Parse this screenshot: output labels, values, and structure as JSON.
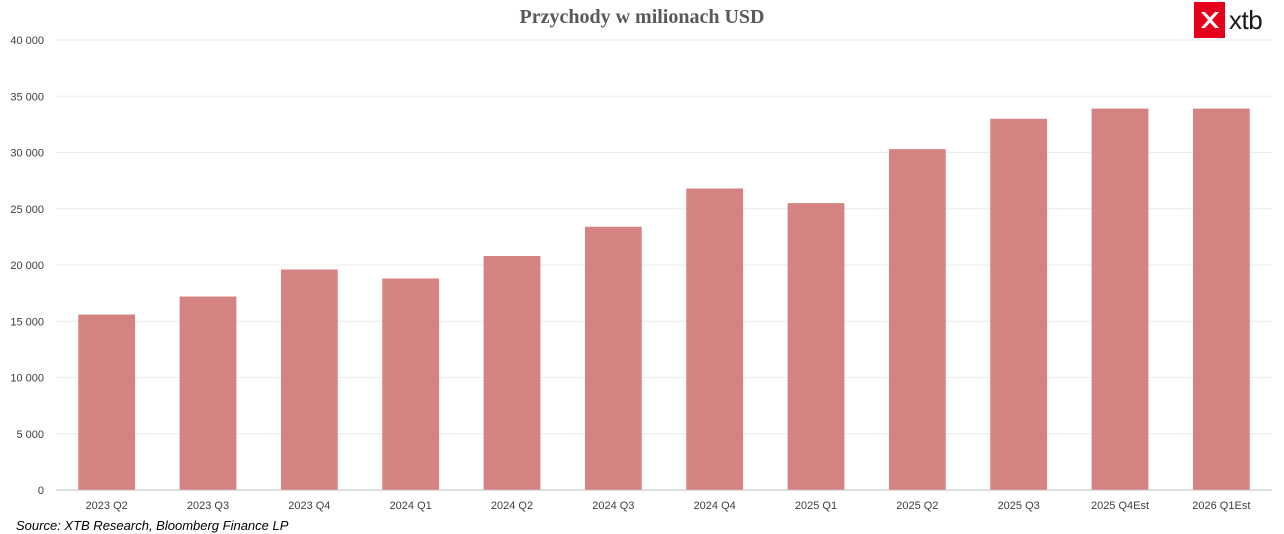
{
  "brand": {
    "logo_text": "xtb",
    "accent": "#e5001c"
  },
  "source": "Source: XTB Research, Bloomberg Finance LP",
  "chart_data": {
    "type": "bar",
    "title": "Przychody w milionach USD",
    "xlabel": "",
    "ylabel": "",
    "categories": [
      "2023 Q2",
      "2023 Q3",
      "2023 Q4",
      "2024 Q1",
      "2024 Q2",
      "2024 Q3",
      "2024 Q4",
      "2025 Q1",
      "2025 Q2",
      "2025 Q3",
      "2025 Q4Est",
      "2026 Q1Est"
    ],
    "values": [
      15600,
      17200,
      19600,
      18800,
      20800,
      23400,
      26800,
      25500,
      30300,
      33000,
      33900,
      33900
    ],
    "ylim": [
      0,
      40000
    ],
    "yticks": [
      0,
      5000,
      10000,
      15000,
      20000,
      25000,
      30000,
      35000,
      40000
    ],
    "ytick_labels": [
      "0",
      "5 000",
      "10 000",
      "15 000",
      "20 000",
      "25 000",
      "30 000",
      "35 000",
      "40 000"
    ],
    "bar_color": "#d48282",
    "grid": true,
    "legend": "none"
  }
}
